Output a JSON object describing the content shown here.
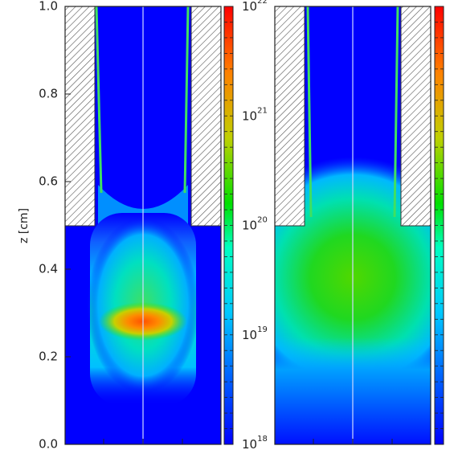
{
  "chart_data": [
    {
      "type": "heatmap",
      "panel": "left",
      "ylabel": "z [cm]",
      "ylim": [
        0.0,
        1.0
      ],
      "yticks": [
        {
          "value": 0.0,
          "label": "0.0"
        },
        {
          "value": 0.2,
          "label": "0.2"
        },
        {
          "value": 0.4,
          "label": "0.4"
        },
        {
          "value": 0.6,
          "label": "0.6"
        },
        {
          "value": 0.8,
          "label": "0.8"
        },
        {
          "value": 1.0,
          "label": "1.0"
        }
      ],
      "electrode_bottom_z": 0.5,
      "peak_z": 0.28,
      "colormap": [
        "#0000ff",
        "#00aaff",
        "#00ffcc",
        "#00e000",
        "#e0d000",
        "#ff8000",
        "#ff0000"
      ]
    },
    {
      "type": "heatmap",
      "panel": "right",
      "colorbar_scale": "log",
      "colorbar_range": [
        1e+18,
        1e+22
      ],
      "colorbar_ticks": [
        {
          "value": 1e+18,
          "base": "10",
          "exp": "18"
        },
        {
          "value": 1e+19,
          "base": "10",
          "exp": "19"
        },
        {
          "value": 1e+20,
          "base": "10",
          "exp": "20"
        },
        {
          "value": 1e+21,
          "base": "10",
          "exp": "21"
        },
        {
          "value": 1e+22,
          "base": "10",
          "exp": "22"
        }
      ],
      "electrode_bottom_z": 0.5,
      "peak_z": 0.36,
      "colormap": [
        "#0000ff",
        "#00aaff",
        "#00ffcc",
        "#00e000",
        "#e0d000",
        "#ff8000",
        "#ff0000"
      ]
    }
  ]
}
